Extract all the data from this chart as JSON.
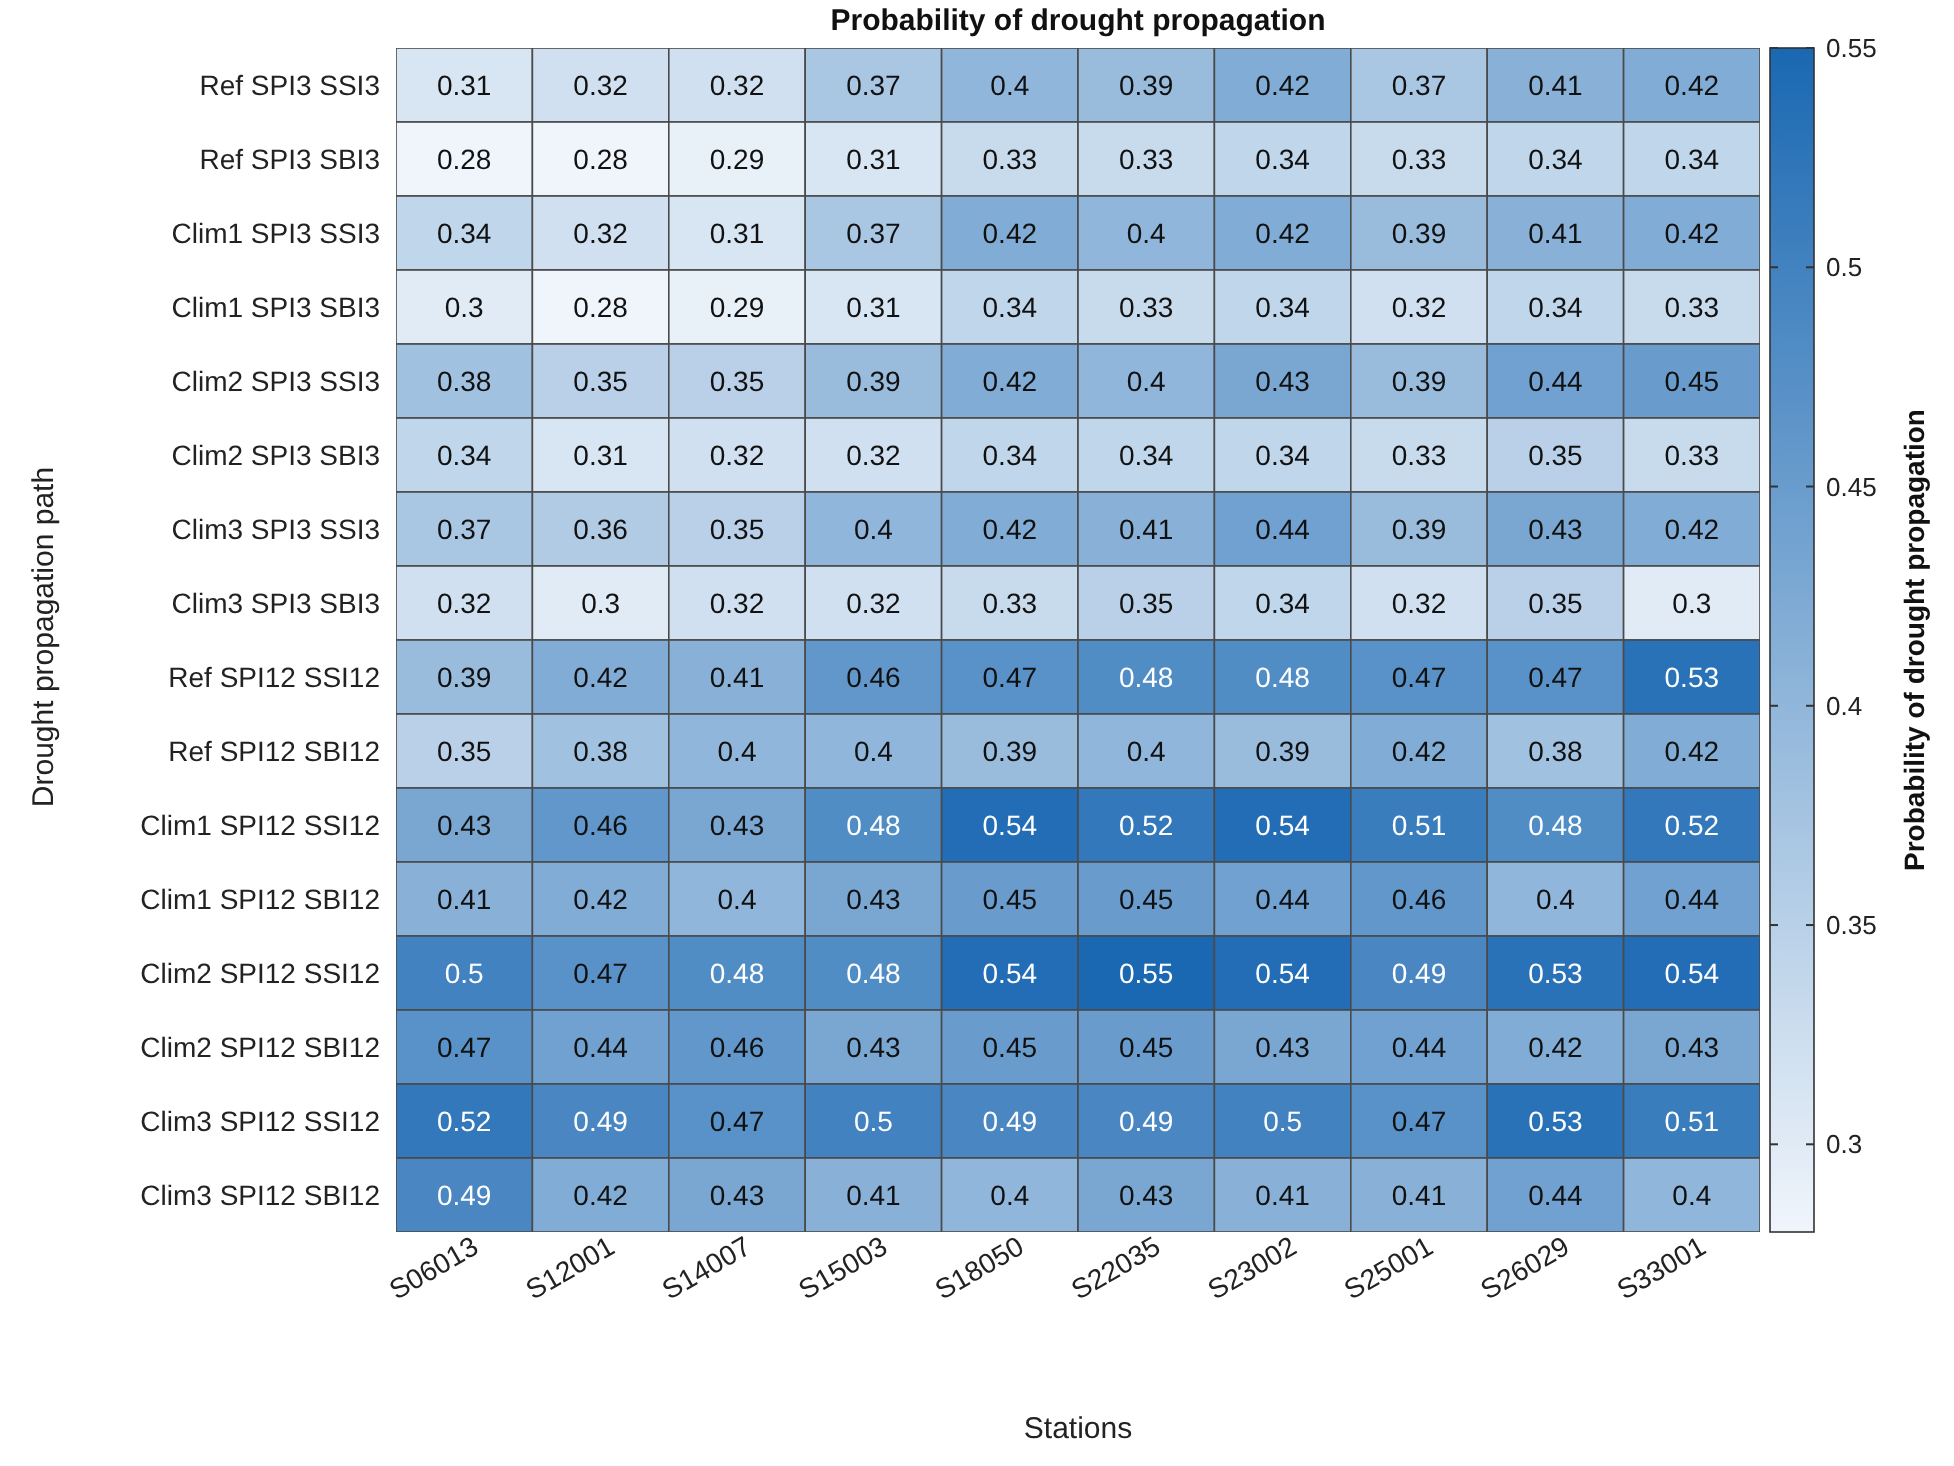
{
  "chart_data": {
    "type": "heatmap",
    "title": "Probability of drought propagation",
    "xlabel": "Stations",
    "ylabel": "Drought propagation path",
    "clabel": "Probability of drought propagation",
    "categories": [
      "S06013",
      "S12001",
      "S14007",
      "S15003",
      "S18050",
      "S22035",
      "S23002",
      "S25001",
      "S26029",
      "S33001"
    ],
    "y_categories": [
      "Ref SPI3 SSI3",
      "Ref SPI3 SBI3",
      "Clim1 SPI3 SSI3",
      "Clim1 SPI3 SBI3",
      "Clim2 SPI3 SSI3",
      "Clim2 SPI3 SBI3",
      "Clim3 SPI3 SSI3",
      "Clim3 SPI3 SBI3",
      "Ref SPI12 SSI12",
      "Ref SPI12 SBI12",
      "Clim1 SPI12 SSI12",
      "Clim1 SPI12 SBI12",
      "Clim2 SPI12 SSI12",
      "Clim2 SPI12 SBI12",
      "Clim3 SPI12 SSI12",
      "Clim3 SPI12 SBI12"
    ],
    "cells": [
      [
        0.31,
        0.32,
        0.32,
        0.37,
        0.4,
        0.39,
        0.42,
        0.37,
        0.41,
        0.42
      ],
      [
        0.28,
        0.28,
        0.29,
        0.31,
        0.33,
        0.33,
        0.34,
        0.33,
        0.34,
        0.34
      ],
      [
        0.34,
        0.32,
        0.31,
        0.37,
        0.42,
        0.4,
        0.42,
        0.39,
        0.41,
        0.42
      ],
      [
        0.3,
        0.28,
        0.29,
        0.31,
        0.34,
        0.33,
        0.34,
        0.32,
        0.34,
        0.33
      ],
      [
        0.38,
        0.35,
        0.35,
        0.39,
        0.42,
        0.4,
        0.43,
        0.39,
        0.44,
        0.45
      ],
      [
        0.34,
        0.31,
        0.32,
        0.32,
        0.34,
        0.34,
        0.34,
        0.33,
        0.35,
        0.33
      ],
      [
        0.37,
        0.36,
        0.35,
        0.4,
        0.42,
        0.41,
        0.44,
        0.39,
        0.43,
        0.42
      ],
      [
        0.32,
        0.3,
        0.32,
        0.32,
        0.33,
        0.35,
        0.34,
        0.32,
        0.35,
        0.3
      ],
      [
        0.39,
        0.42,
        0.41,
        0.46,
        0.47,
        0.48,
        0.48,
        0.47,
        0.47,
        0.53
      ],
      [
        0.35,
        0.38,
        0.4,
        0.4,
        0.39,
        0.4,
        0.39,
        0.42,
        0.38,
        0.42
      ],
      [
        0.43,
        0.46,
        0.43,
        0.48,
        0.54,
        0.52,
        0.54,
        0.51,
        0.48,
        0.52
      ],
      [
        0.41,
        0.42,
        0.4,
        0.43,
        0.45,
        0.45,
        0.44,
        0.46,
        0.4,
        0.44
      ],
      [
        0.5,
        0.47,
        0.48,
        0.48,
        0.54,
        0.55,
        0.54,
        0.49,
        0.53,
        0.54
      ],
      [
        0.47,
        0.44,
        0.46,
        0.43,
        0.45,
        0.45,
        0.43,
        0.44,
        0.42,
        0.43
      ],
      [
        0.52,
        0.49,
        0.47,
        0.5,
        0.49,
        0.49,
        0.5,
        0.47,
        0.53,
        0.51
      ],
      [
        0.49,
        0.42,
        0.43,
        0.41,
        0.4,
        0.43,
        0.41,
        0.41,
        0.44,
        0.4
      ]
    ],
    "data_labels": true,
    "clim": [
      0.28,
      0.55
    ],
    "cticks": [
      0.3,
      0.35,
      0.4,
      0.45,
      0.5,
      0.55
    ]
  }
}
